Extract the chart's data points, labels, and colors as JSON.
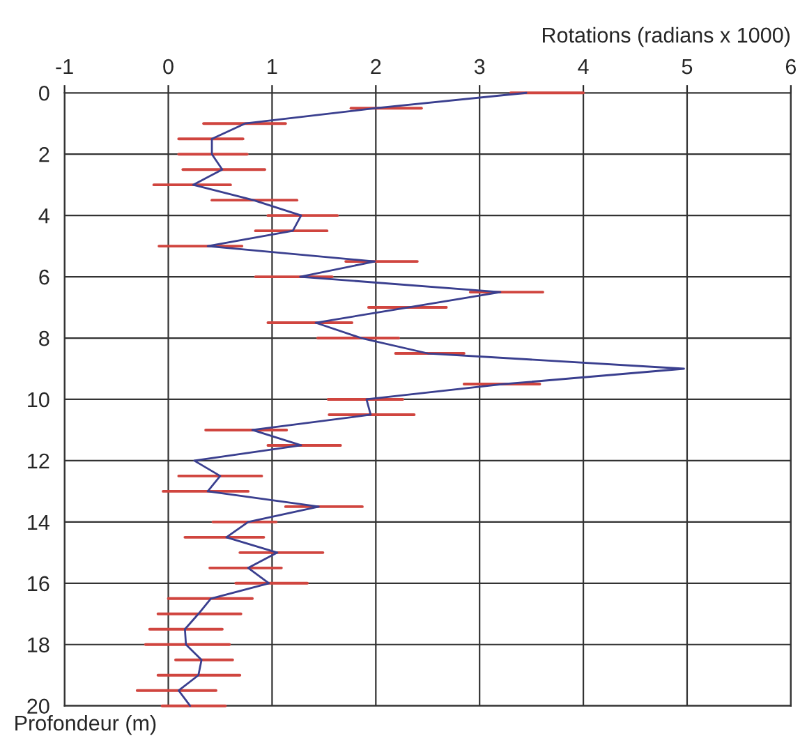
{
  "chart_data": {
    "type": "line",
    "orientation": "horizontal",
    "xlabel": "Rotations (radians x 1000)",
    "ylabel": "Profondeur (m)",
    "x": [
      0,
      0.5,
      1,
      1.5,
      2,
      2.5,
      3,
      3.5,
      4,
      4.5,
      5,
      5.5,
      6,
      6.5,
      7,
      7.5,
      8,
      8.5,
      9,
      9.5,
      10,
      10.5,
      11,
      11.5,
      12,
      12.5,
      13,
      13.5,
      14,
      14.5,
      15,
      15.5,
      16,
      16.5,
      17,
      17.5,
      18,
      18.5,
      19,
      19.5,
      20
    ],
    "series": [
      {
        "color": "#3a3f8f",
        "values": [
          3.45,
          2.0,
          0.74,
          0.42,
          0.42,
          0.52,
          0.24,
          0.82,
          1.28,
          1.2,
          0.38,
          1.99,
          1.27,
          3.2,
          2.31,
          1.42,
          1.86,
          2.5,
          4.97,
          3.24,
          1.91,
          1.95,
          0.81,
          1.28,
          0.25,
          0.5,
          0.38,
          1.45,
          0.77,
          0.56,
          1.05,
          0.77,
          0.97,
          0.41,
          0.29,
          0.16,
          0.17,
          0.32,
          0.29,
          0.1,
          0.21
        ],
        "errors": [
          [
            3.3,
            4.0
          ],
          [
            1.76,
            2.44
          ],
          [
            0.34,
            1.13
          ],
          [
            0.1,
            0.72
          ],
          [
            0.1,
            0.76
          ],
          [
            0.14,
            0.93
          ],
          [
            -0.14,
            0.6
          ],
          [
            0.42,
            1.24
          ],
          [
            0.96,
            1.63
          ],
          [
            0.84,
            1.53
          ],
          [
            -0.09,
            0.71
          ],
          [
            1.71,
            2.4
          ],
          [
            0.84,
            1.58
          ],
          [
            2.91,
            3.61
          ],
          [
            1.93,
            2.68
          ],
          [
            0.96,
            1.77
          ],
          [
            1.44,
            2.22
          ],
          [
            2.19,
            2.85
          ],
          null,
          [
            2.85,
            3.58
          ],
          [
            1.54,
            2.26
          ],
          [
            1.55,
            2.37
          ],
          [
            0.36,
            1.14
          ],
          [
            0.96,
            1.66
          ],
          null,
          [
            0.1,
            0.9
          ],
          [
            -0.05,
            0.77
          ],
          [
            1.13,
            1.87
          ],
          [
            0.43,
            1.04
          ],
          [
            0.16,
            0.92
          ],
          [
            0.69,
            1.49
          ],
          [
            0.4,
            1.09
          ],
          [
            0.65,
            1.34
          ],
          [
            0.0,
            0.81
          ],
          [
            -0.1,
            0.7
          ],
          [
            -0.18,
            0.52
          ],
          [
            -0.22,
            0.59
          ],
          [
            0.07,
            0.62
          ],
          [
            -0.1,
            0.69
          ],
          [
            -0.3,
            0.46
          ],
          [
            -0.06,
            0.55
          ]
        ]
      }
    ],
    "xlim": [
      -1,
      6
    ],
    "xticks": [
      -1,
      0,
      1,
      2,
      3,
      4,
      5,
      6
    ],
    "ylim": [
      20,
      0
    ],
    "yticks": [
      0,
      2,
      4,
      6,
      8,
      10,
      12,
      14,
      16,
      18,
      20
    ],
    "grid": true,
    "marker": "none",
    "line_style": "solid"
  }
}
